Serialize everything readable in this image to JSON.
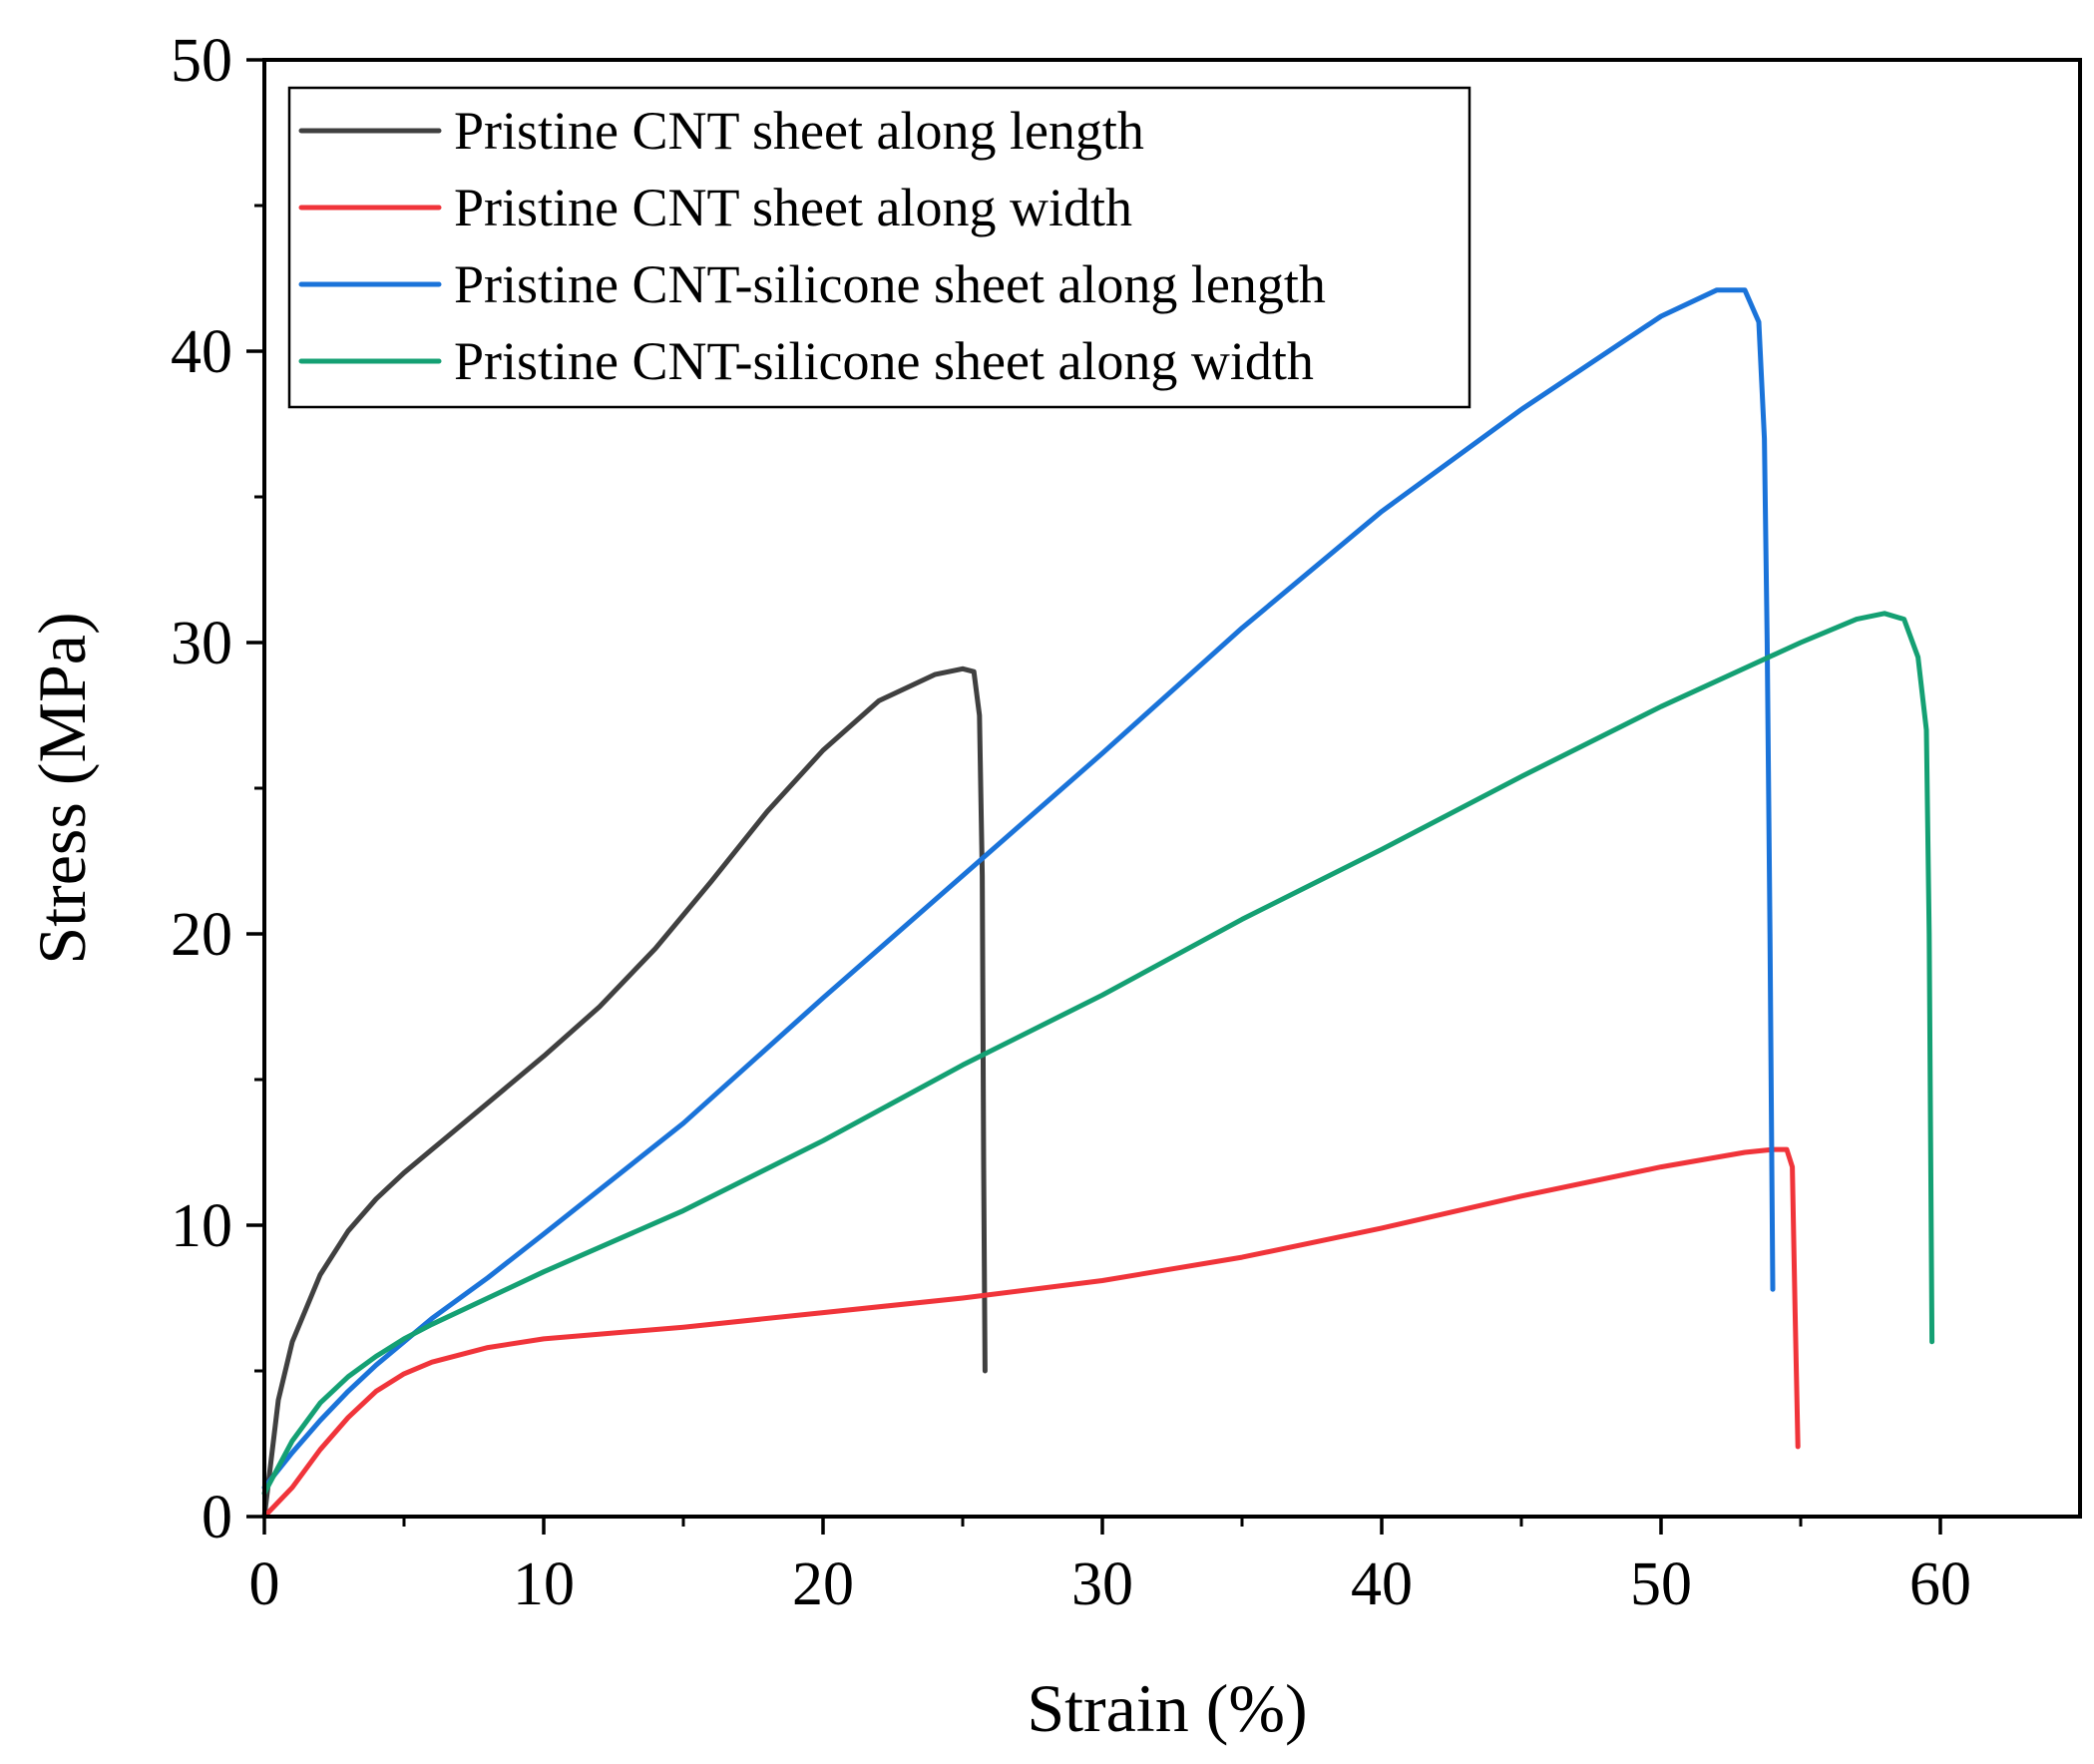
{
  "chart_data": {
    "type": "line",
    "title": "",
    "xlabel": "Strain (%)",
    "ylabel": "Stress (MPa)",
    "xlim": [
      0,
      65
    ],
    "ylim": [
      0,
      50
    ],
    "x_ticks": [
      0,
      10,
      20,
      30,
      40,
      50,
      60
    ],
    "y_ticks": [
      0,
      10,
      20,
      30,
      40,
      50
    ],
    "x_tick_labels": [
      "0",
      "10",
      "20",
      "30",
      "40",
      "50",
      "60"
    ],
    "y_tick_labels": [
      "0",
      "10",
      "20",
      "30",
      "40",
      "50"
    ],
    "grid": false,
    "legend_position": "top-left",
    "series": [
      {
        "name": "Pristine CNT sheet along length",
        "color": "#404040",
        "x": [
          0,
          0.5,
          1,
          2,
          3,
          4,
          5,
          6,
          8,
          10,
          12,
          14,
          16,
          18,
          20,
          22,
          24,
          25,
          25.4,
          25.6,
          25.7,
          25.75,
          25.8
        ],
        "y": [
          0,
          4,
          6,
          8.3,
          9.8,
          10.9,
          11.8,
          12.6,
          14.2,
          15.8,
          17.5,
          19.5,
          21.8,
          24.2,
          26.3,
          28,
          28.9,
          29.1,
          29,
          27.5,
          22,
          12,
          5
        ]
      },
      {
        "name": "Pristine CNT sheet along width",
        "color": "#f0343a",
        "x": [
          0,
          1,
          2,
          3,
          4,
          5,
          6,
          8,
          10,
          15,
          20,
          25,
          30,
          35,
          40,
          45,
          50,
          53,
          54,
          54.5,
          54.7,
          54.8,
          54.9
        ],
        "y": [
          0,
          1,
          2.3,
          3.4,
          4.3,
          4.9,
          5.3,
          5.8,
          6.1,
          6.5,
          7,
          7.5,
          8.1,
          8.9,
          9.9,
          11,
          12,
          12.5,
          12.6,
          12.6,
          12,
          7,
          2.4
        ]
      },
      {
        "name": "Pristine CNT-silicone sheet along length",
        "color": "#1a73d9",
        "x": [
          0,
          1,
          2,
          3,
          4,
          5,
          6,
          8,
          10,
          15,
          20,
          25,
          30,
          35,
          40,
          45,
          50,
          52,
          53,
          53.5,
          53.7,
          53.8,
          53.9,
          54
        ],
        "y": [
          1,
          2.2,
          3.3,
          4.3,
          5.2,
          6,
          6.8,
          8.2,
          9.7,
          13.5,
          17.8,
          22,
          26.2,
          30.5,
          34.5,
          38,
          41.2,
          42.1,
          42.1,
          41,
          37,
          30,
          20,
          7.8
        ]
      },
      {
        "name": "Pristine CNT-silicone sheet along width",
        "color": "#14a073",
        "x": [
          0,
          1,
          2,
          3,
          4,
          5,
          6,
          8,
          10,
          15,
          20,
          25,
          30,
          35,
          40,
          45,
          50,
          55,
          57,
          58,
          58.7,
          59.2,
          59.5,
          59.6,
          59.7
        ],
        "y": [
          0.8,
          2.6,
          3.9,
          4.8,
          5.5,
          6.1,
          6.6,
          7.5,
          8.4,
          10.5,
          12.9,
          15.5,
          17.9,
          20.5,
          22.9,
          25.4,
          27.8,
          30,
          30.8,
          31,
          30.8,
          29.5,
          27,
          20,
          6
        ]
      }
    ]
  }
}
